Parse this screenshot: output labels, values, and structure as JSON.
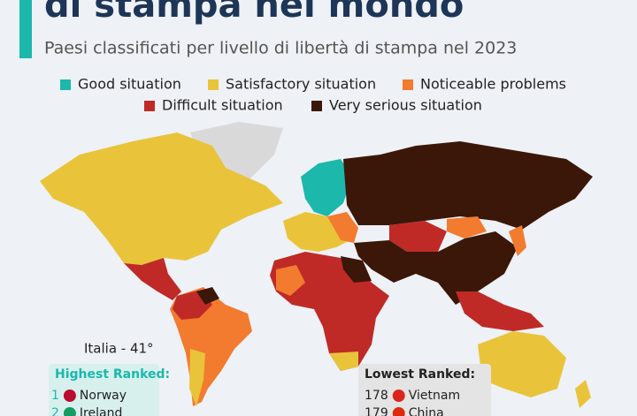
{
  "header": {
    "title": "di stampa nel mondo",
    "subtitle": "Paesi classificati per livello di libertà di stampa nel 2023"
  },
  "legend": {
    "items": [
      {
        "label": "Good situation",
        "color": "#1bb8ab"
      },
      {
        "label": "Satisfactory situation",
        "color": "#e9c43b"
      },
      {
        "label": "Noticeable problems",
        "color": "#f27b2f"
      },
      {
        "label": "Difficult situation",
        "color": "#bf2a27"
      },
      {
        "label": "Very serious situation",
        "color": "#3b1709"
      }
    ]
  },
  "annotation": "Italia - 41°",
  "highest": {
    "title": "Highest Ranked:",
    "rows": [
      {
        "rank": 1,
        "country": "Norway"
      },
      {
        "rank": 2,
        "country": "Ireland"
      }
    ]
  },
  "lowest": {
    "title": "Lowest Ranked:",
    "rows": [
      {
        "rank": 178,
        "country": "Vietnam"
      },
      {
        "rank": 179,
        "country": "China"
      }
    ]
  }
}
